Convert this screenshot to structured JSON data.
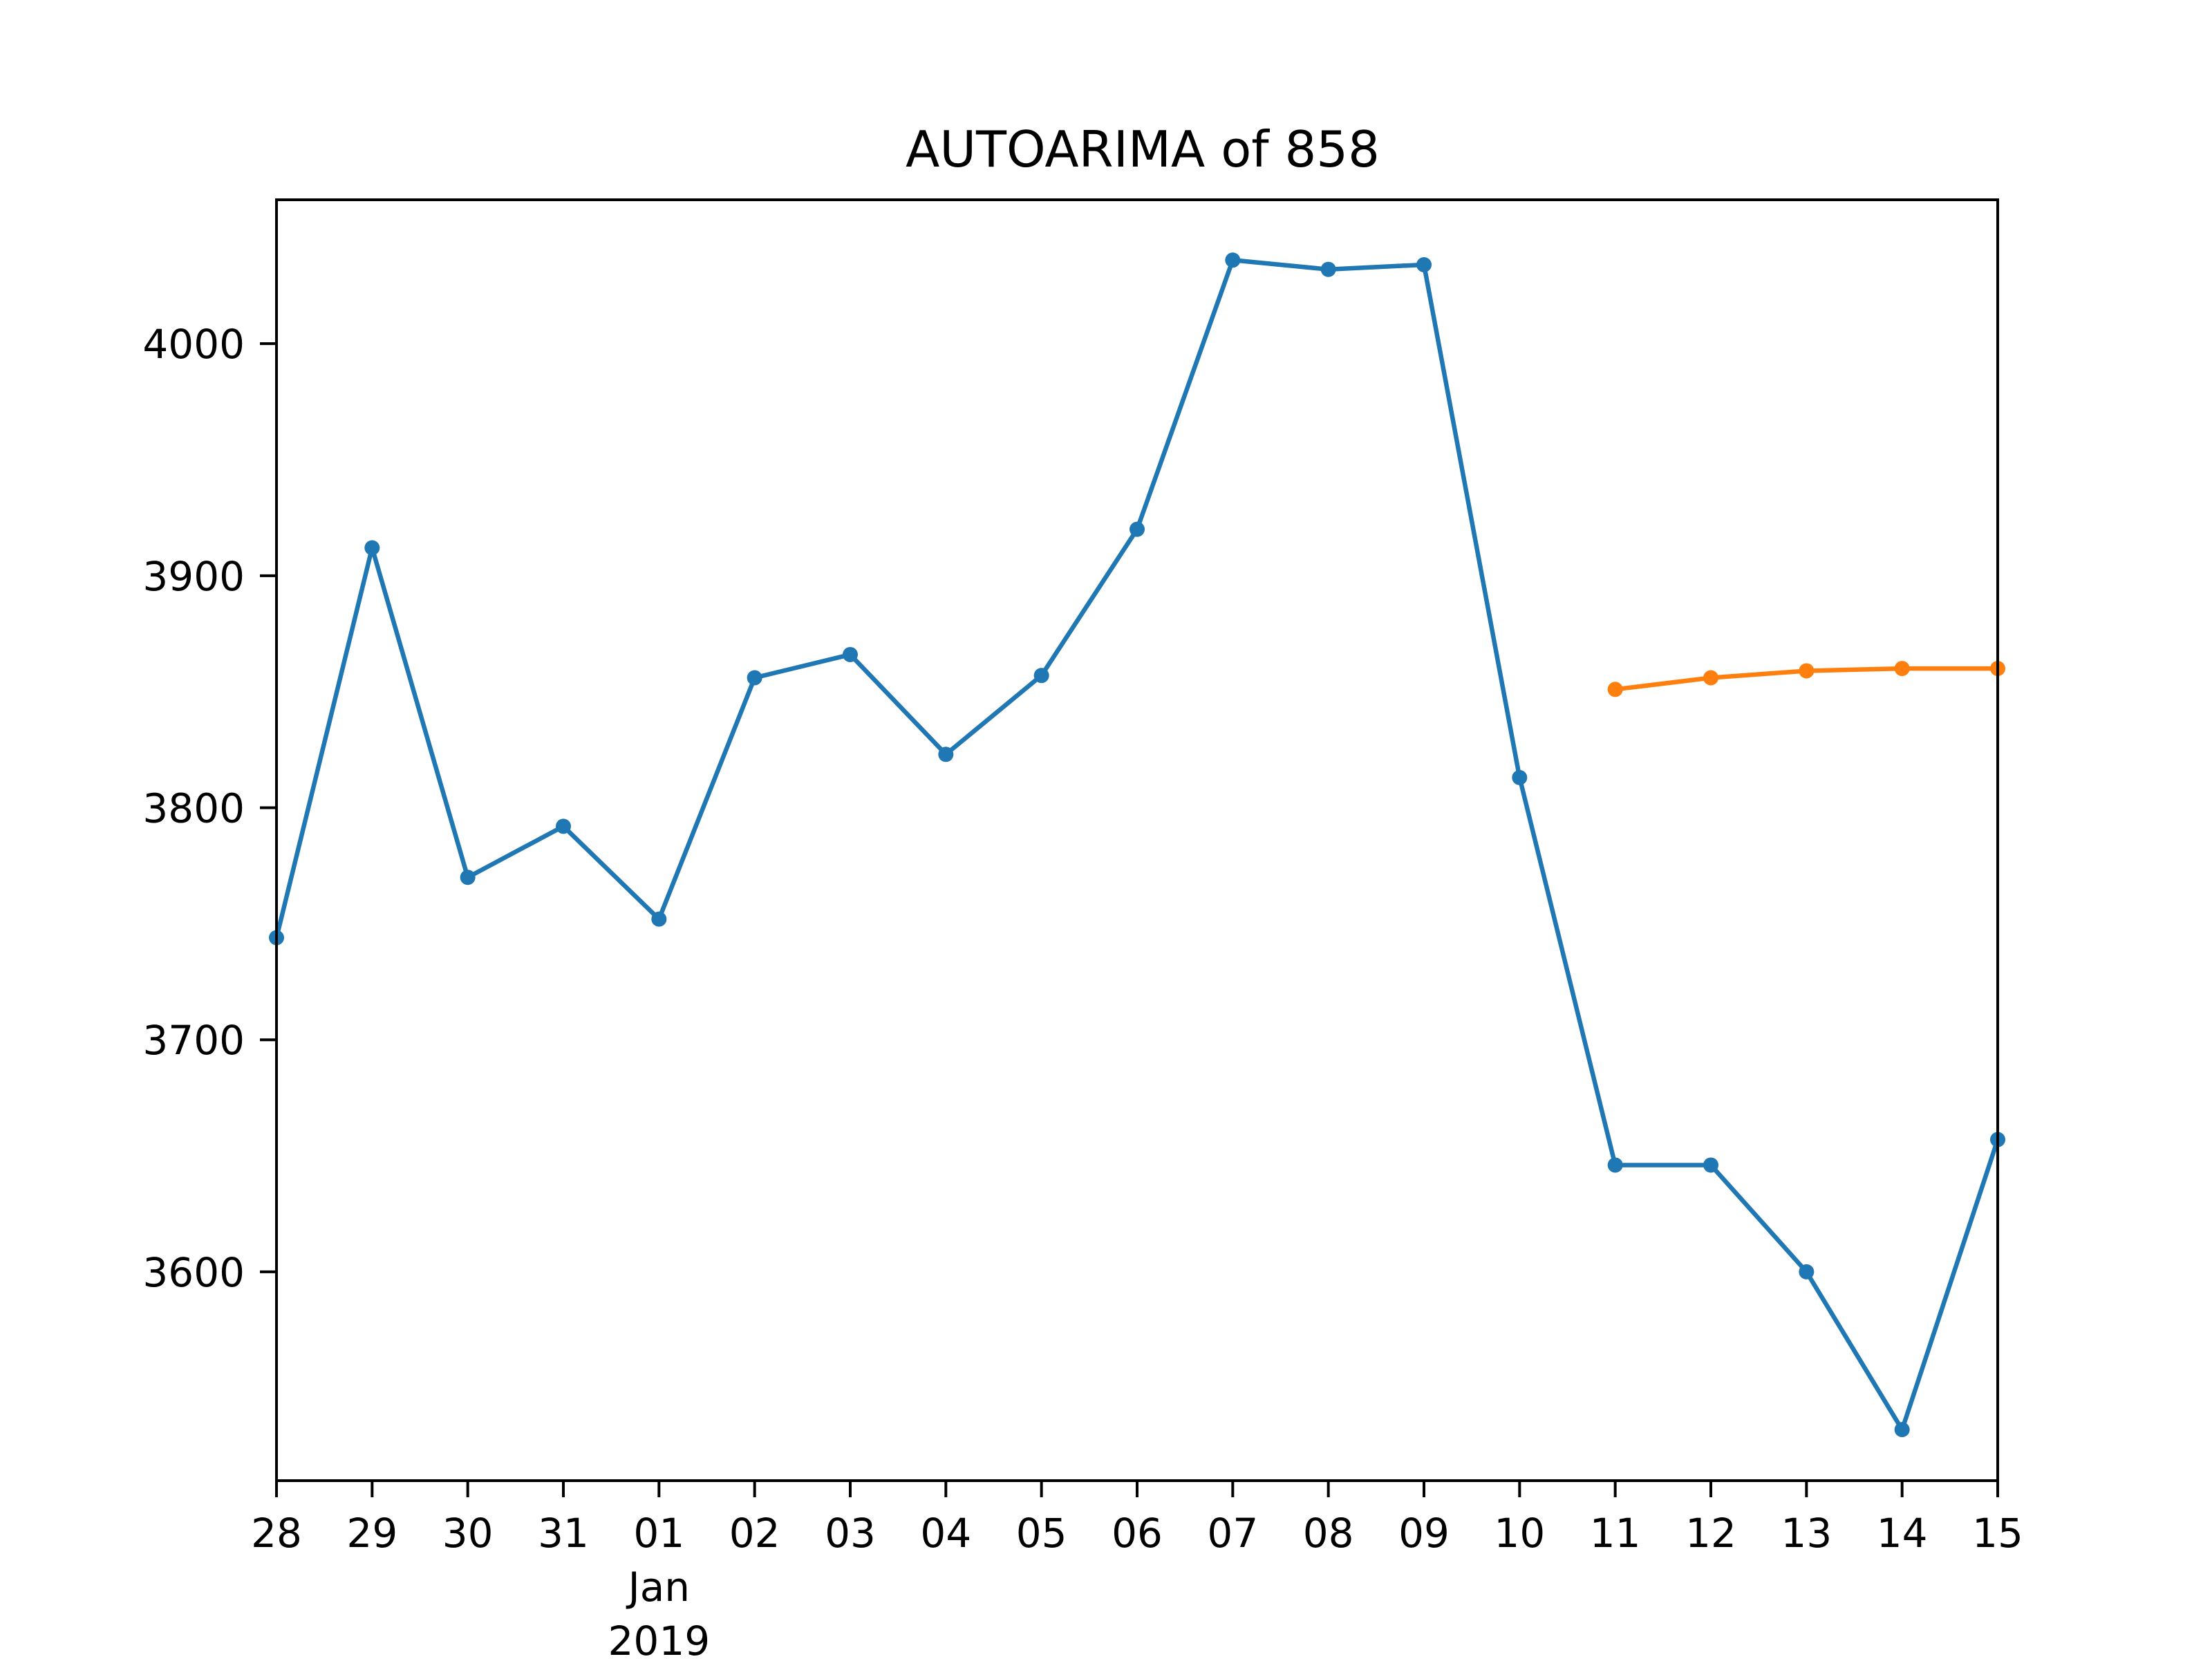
{
  "chart_data": {
    "type": "line",
    "title": "AUTOARIMA of 858",
    "xlabel": "",
    "ylabel": "",
    "x_axis": {
      "type": "date",
      "range": [
        "2018-12-28",
        "2019-01-15"
      ],
      "ticks": [
        "2018-12-28",
        "2018-12-29",
        "2018-12-30",
        "2018-12-31",
        "2019-01-01",
        "2019-01-02",
        "2019-01-03",
        "2019-01-04",
        "2019-01-05",
        "2019-01-06",
        "2019-01-07",
        "2019-01-08",
        "2019-01-09",
        "2019-01-10",
        "2019-01-11",
        "2019-01-12",
        "2019-01-13",
        "2019-01-14",
        "2019-01-15"
      ],
      "tick_labels": [
        "28",
        "29",
        "30",
        "31",
        "01",
        "02",
        "03",
        "04",
        "05",
        "06",
        "07",
        "08",
        "09",
        "10",
        "11",
        "12",
        "13",
        "14",
        "15"
      ],
      "secondary_labels": [
        {
          "at": "2019-01-01",
          "text": "Jan"
        },
        {
          "at": "2019-01-01",
          "text": "2019"
        }
      ]
    },
    "y_axis": {
      "range": [
        3510,
        4062
      ],
      "ticks": [
        3600,
        3700,
        3800,
        3900,
        4000
      ],
      "tick_labels": [
        "3600",
        "3700",
        "3800",
        "3900",
        "4000"
      ]
    },
    "grid": false,
    "legend": "none",
    "series": [
      {
        "color": "#1f77b4",
        "marker": "circle",
        "points": [
          {
            "x": "2018-12-28",
            "y": 3744
          },
          {
            "x": "2018-12-29",
            "y": 3912
          },
          {
            "x": "2018-12-30",
            "y": 3770
          },
          {
            "x": "2018-12-31",
            "y": 3792
          },
          {
            "x": "2019-01-01",
            "y": 3752
          },
          {
            "x": "2019-01-02",
            "y": 3856
          },
          {
            "x": "2019-01-03",
            "y": 3866
          },
          {
            "x": "2019-01-04",
            "y": 3823
          },
          {
            "x": "2019-01-05",
            "y": 3857
          },
          {
            "x": "2019-01-06",
            "y": 3920
          },
          {
            "x": "2019-01-07",
            "y": 4036
          },
          {
            "x": "2019-01-08",
            "y": 4032
          },
          {
            "x": "2019-01-09",
            "y": 4034
          },
          {
            "x": "2019-01-10",
            "y": 3813
          },
          {
            "x": "2019-01-11",
            "y": 3646
          },
          {
            "x": "2019-01-12",
            "y": 3646
          },
          {
            "x": "2019-01-13",
            "y": 3600
          },
          {
            "x": "2019-01-14",
            "y": 3532
          },
          {
            "x": "2019-01-15",
            "y": 3657
          }
        ]
      },
      {
        "color": "#ff7f0e",
        "marker": "circle",
        "points": [
          {
            "x": "2019-01-11",
            "y": 3851
          },
          {
            "x": "2019-01-12",
            "y": 3856
          },
          {
            "x": "2019-01-13",
            "y": 3859
          },
          {
            "x": "2019-01-14",
            "y": 3860
          },
          {
            "x": "2019-01-15",
            "y": 3860
          }
        ]
      }
    ]
  }
}
